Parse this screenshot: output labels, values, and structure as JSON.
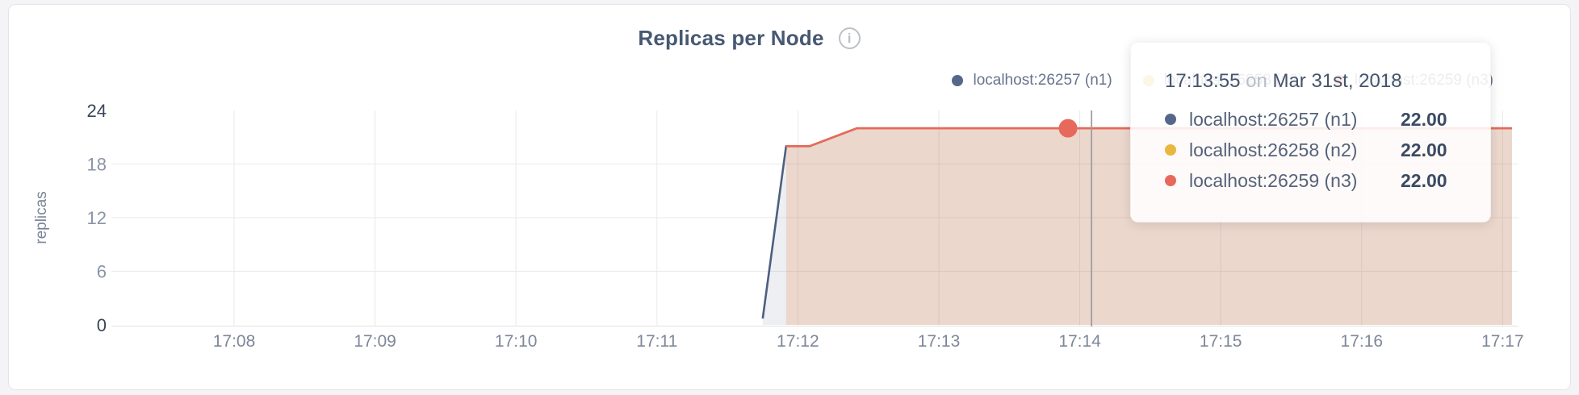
{
  "card": {
    "title": "Replicas per Node",
    "info_icon_glyph": "i"
  },
  "legend": {
    "items": [
      {
        "label": "localhost:26257 (n1)",
        "color": "#56688a"
      },
      {
        "label": "localhost:26258 (n2)",
        "color": "#e9b63f"
      },
      {
        "label": "localhost:26259 (n3)",
        "color": "#e7695c"
      }
    ]
  },
  "tooltip": {
    "time": "17:13:55",
    "conjunction": "on",
    "date": "Mar 31st, 2018",
    "rows": [
      {
        "label": "localhost:26257 (n1)",
        "value": "22.00",
        "color": "#56688a"
      },
      {
        "label": "localhost:26258 (n2)",
        "value": "22.00",
        "color": "#e9b63f"
      },
      {
        "label": "localhost:26259 (n3)",
        "value": "22.00",
        "color": "#e7695c"
      }
    ]
  },
  "chart_data": {
    "type": "area",
    "title": "Replicas per Node",
    "xlabel": "",
    "ylabel": "replicas",
    "ylim": [
      0,
      24
    ],
    "grid": true,
    "legend_position": "top-right",
    "x_ticks": [
      "17:08",
      "17:09",
      "17:10",
      "17:11",
      "17:12",
      "17:13",
      "17:14",
      "17:15",
      "17:16",
      "17:17"
    ],
    "x_range": [
      "17:07:10",
      "17:17:04"
    ],
    "y_ticks": [
      {
        "value": 24,
        "label": "24",
        "strong": true
      },
      {
        "value": 18,
        "label": "18",
        "strong": false
      },
      {
        "value": 12,
        "label": "12",
        "strong": false
      },
      {
        "value": 6,
        "label": "6",
        "strong": false
      },
      {
        "value": 0,
        "label": "0",
        "strong": true
      }
    ],
    "y_gridlines": [
      6,
      12,
      18
    ],
    "series": [
      {
        "name": "localhost:26257 (n1)",
        "color": "#4d5f80",
        "fill_opacity": 0.1,
        "points": [
          [
            "17:11:45",
            0.7
          ],
          [
            "17:11:55",
            20
          ],
          [
            "17:12:05",
            20
          ],
          [
            "17:12:25",
            22
          ],
          [
            "17:17:04",
            22
          ]
        ]
      },
      {
        "name": "localhost:26258 (n2)",
        "color": "#e9b63f",
        "fill_opacity": 0.1,
        "points": [
          [
            "17:11:55",
            20
          ],
          [
            "17:12:05",
            20
          ],
          [
            "17:12:25",
            22
          ],
          [
            "17:17:04",
            22
          ]
        ]
      },
      {
        "name": "localhost:26259 (n3)",
        "color": "#e7695c",
        "fill_opacity": 0.14,
        "points": [
          [
            "17:11:55",
            20
          ],
          [
            "17:12:05",
            20
          ],
          [
            "17:12:25",
            22
          ],
          [
            "17:17:04",
            22
          ]
        ]
      }
    ],
    "hover": {
      "guideline_time": "17:14:05",
      "point": {
        "series": "localhost:26259 (n3)",
        "time": "17:13:55",
        "value": 22,
        "color": "#e7695c"
      }
    }
  }
}
